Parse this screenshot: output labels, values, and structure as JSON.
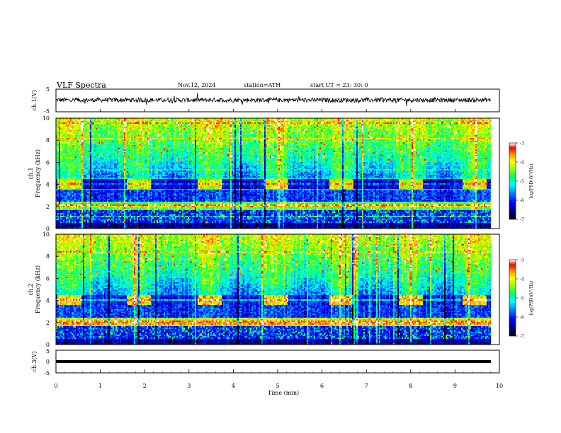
{
  "header": {
    "title": "VLF  Spectra",
    "date": "Nov.12, 2024",
    "station": "station=ATH",
    "start": "start  UT  =   23: 30: 0"
  },
  "chart_data": [
    {
      "type": "line",
      "name": "ch1-waveform",
      "ylabel": "ch.1(V)",
      "ylim": [
        -5,
        5
      ],
      "yticks": [
        "5",
        "-5"
      ],
      "xlim": [
        0,
        10
      ],
      "baseline_v": 0.2,
      "noise_amplitude_v": 1.0
    },
    {
      "type": "heatmap",
      "name": "ch1-spectrogram",
      "ylabel": "ch.1\nFrequency (kHz)",
      "ylim": [
        0,
        10
      ],
      "yticks": [
        "0",
        "2",
        "4",
        "6",
        "8",
        "10"
      ],
      "xlim": [
        0,
        10
      ],
      "data_end_min": 9.8,
      "burst_times_min": [
        0.3,
        1.85,
        3.45,
        4.95,
        6.45,
        8.0,
        9.45
      ],
      "tone_khz": 4.0,
      "colorbar": {
        "label": "log(PSD)(V²/Hz)",
        "range": [
          -7,
          -3
        ],
        "ticks": [
          "-3",
          "-4",
          "-5",
          "-6",
          "-7"
        ]
      }
    },
    {
      "type": "heatmap",
      "name": "ch2-spectrogram",
      "ylabel": "ch.2\nFrequency (kHz)",
      "ylim": [
        0,
        10
      ],
      "yticks": [
        "0",
        "2",
        "4",
        "6",
        "8",
        "10"
      ],
      "xlim": [
        0,
        10
      ],
      "data_end_min": 9.8,
      "burst_times_min": [
        0.3,
        1.85,
        3.45,
        4.95,
        6.45,
        8.0,
        9.45
      ],
      "tone_khz": 4.0,
      "colorbar": {
        "label": "log(PSD)(V²/Hz)",
        "range": [
          -7,
          -3
        ],
        "ticks": [
          "-3",
          "-4",
          "-5",
          "-6",
          "-7"
        ]
      }
    },
    {
      "type": "line",
      "name": "ch3-waveform",
      "ylabel": "ch.3(V)",
      "ylim": [
        -5,
        5
      ],
      "yticks": [
        "5",
        "0",
        "-5"
      ],
      "xlim": [
        0,
        10
      ],
      "baseline_v": -1.5,
      "xlabel": "Time  (min)",
      "xticks": [
        "0",
        "1",
        "2",
        "3",
        "4",
        "5",
        "6",
        "7",
        "8",
        "9",
        "10"
      ]
    }
  ],
  "colors": {
    "colormap": [
      "#000000",
      "#00008b",
      "#0000ff",
      "#0096ff",
      "#00ffff",
      "#00ff64",
      "#96ff00",
      "#ffff00",
      "#ff8c00",
      "#ff0000",
      "#ffffff"
    ]
  }
}
